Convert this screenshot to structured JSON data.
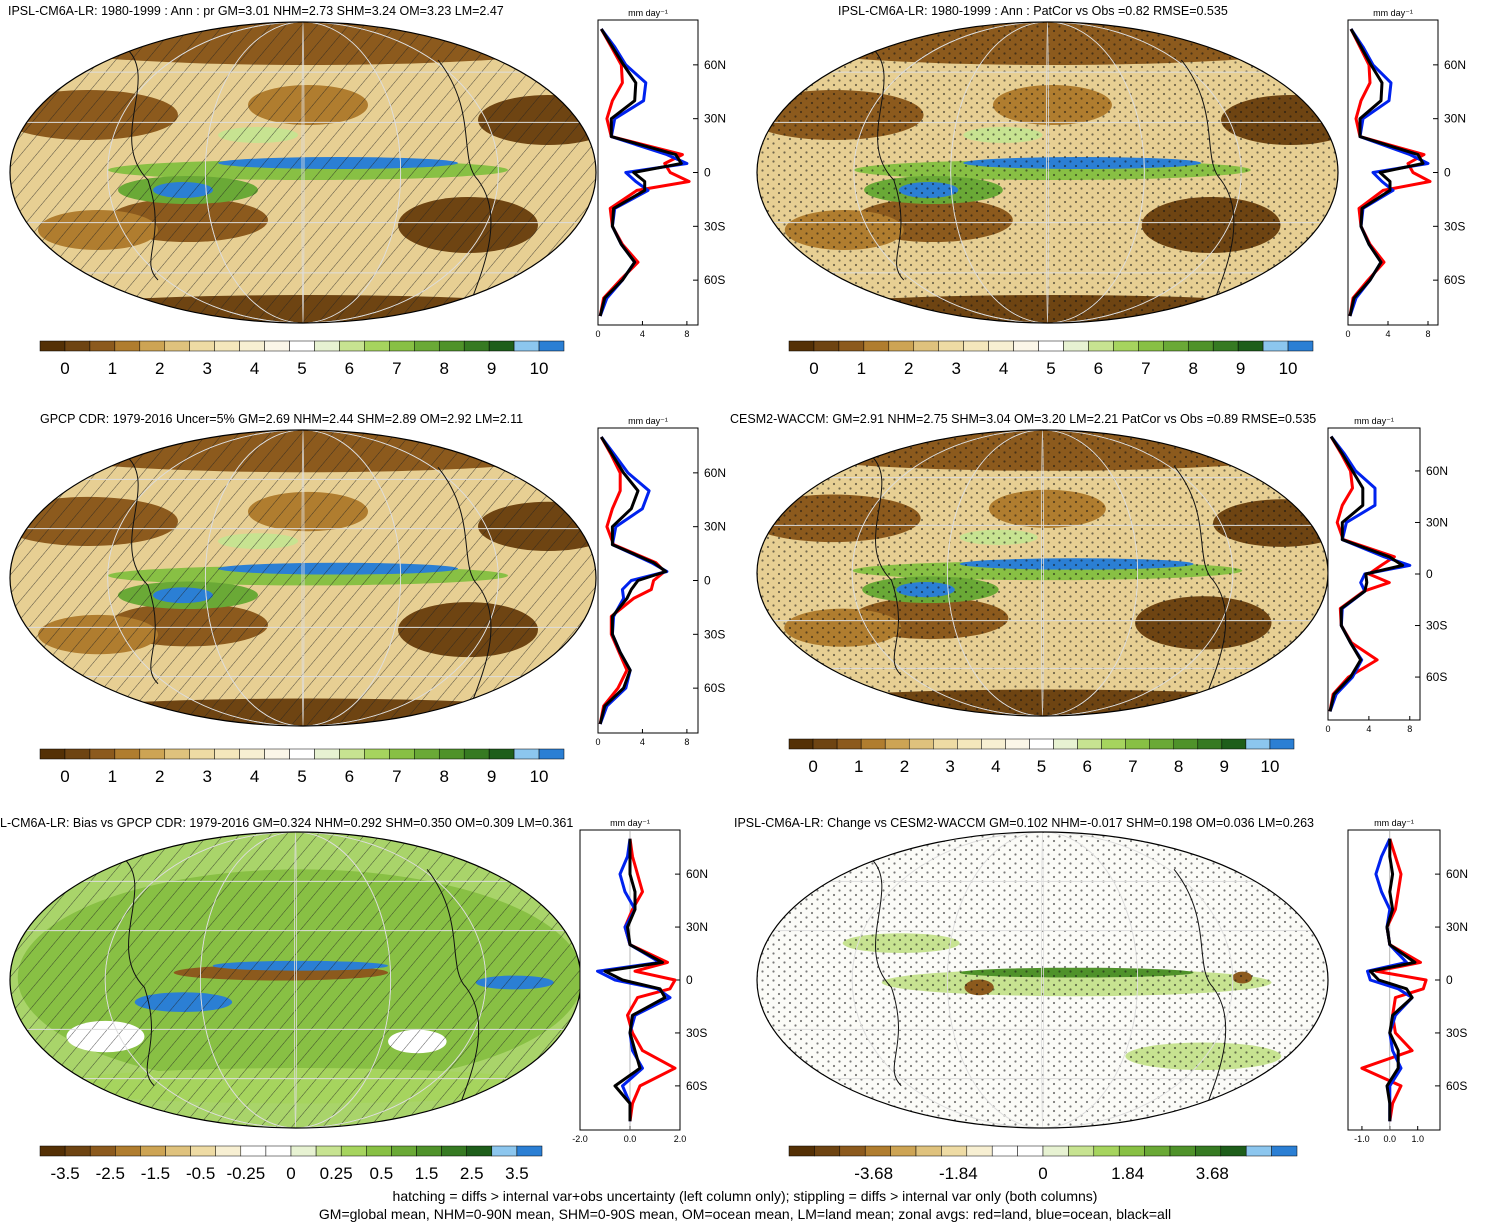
{
  "footer": {
    "line1": "hatching = diffs > internal var+obs uncertainty (left column only); stippling = diffs > internal var only (both columns)",
    "line2": "GM=global mean, NHM=0-90N mean, SHM=0-90S mean, OM=ocean mean, LM=land mean; zonal avgs: red=land, blue=ocean, black=all"
  },
  "colors": {
    "land": "#ff0000",
    "ocean": "#0022ee",
    "all": "#000000"
  },
  "zonal_unit": "mm day⁻¹",
  "chart_data": [
    {
      "type": "heatmap",
      "title": "IPSL-CM6A-LR: 1980-1999 : Ann : pr GM=3.01 NHM=2.73 SHM=3.24 OM=3.23 LM=2.47",
      "field": "precip",
      "overlay": "hatch",
      "colorbar": {
        "labels": [
          "0",
          "1",
          "2",
          "3",
          "4",
          "5",
          "6",
          "7",
          "8",
          "9",
          "10"
        ]
      },
      "zonal": {
        "unit": "mm day⁻¹",
        "xlim": [
          0,
          9
        ],
        "xticks": [
          0,
          4,
          8
        ],
        "ylim": [
          -85,
          85
        ],
        "yticks": [
          "60N",
          "30N",
          "0",
          "30S",
          "60S"
        ],
        "lat": [
          80,
          70,
          60,
          50,
          40,
          30,
          20,
          10,
          5,
          0,
          -5,
          -10,
          -20,
          -30,
          -40,
          -50,
          -60,
          -70,
          -80
        ],
        "series": [
          {
            "name": "land",
            "values": [
              0.3,
              1.2,
              2.1,
              2.2,
              1.3,
              0.8,
              1.2,
              7.6,
              6.0,
              6.5,
              8.2,
              3.5,
              1.1,
              1.3,
              2.2,
              3.6,
              2.0,
              0.5,
              0.2
            ]
          },
          {
            "name": "ocean",
            "values": [
              0.3,
              1.5,
              2.5,
              4.3,
              4.1,
              1.5,
              1.2,
              6.2,
              8.0,
              2.5,
              3.4,
              4.5,
              1.5,
              1.3,
              2.1,
              3.3,
              2.2,
              0.8,
              0.2
            ]
          },
          {
            "name": "all",
            "values": [
              0.3,
              1.3,
              2.3,
              3.4,
              3.3,
              1.2,
              1.2,
              7.0,
              7.5,
              3.2,
              4.2,
              4.2,
              1.4,
              1.3,
              2.1,
              3.3,
              2.2,
              0.6,
              0.2
            ]
          }
        ]
      }
    },
    {
      "type": "heatmap",
      "title": "IPSL-CM6A-LR: 1980-1999 : Ann : PatCor vs Obs =0.82 RMSE=0.535",
      "field": "precip",
      "overlay": "stipple",
      "colorbar": {
        "labels": [
          "0",
          "1",
          "2",
          "3",
          "4",
          "5",
          "6",
          "7",
          "8",
          "9",
          "10"
        ]
      },
      "zonal": {
        "unit": "mm day⁻¹",
        "xlim": [
          0,
          9
        ],
        "xticks": [
          0,
          4,
          8
        ],
        "ylim": [
          -85,
          85
        ],
        "yticks": [
          "60N",
          "30N",
          "0",
          "30S",
          "60S"
        ],
        "lat": [
          80,
          70,
          60,
          50,
          40,
          30,
          20,
          10,
          5,
          0,
          -5,
          -10,
          -20,
          -30,
          -40,
          -50,
          -60,
          -70,
          -80
        ],
        "series": [
          {
            "name": "land",
            "values": [
              0.3,
              1.2,
              2.1,
              2.2,
              1.3,
              0.8,
              1.2,
              7.6,
              6.0,
              6.5,
              8.2,
              3.5,
              1.1,
              1.3,
              2.2,
              3.6,
              2.0,
              0.5,
              0.2
            ]
          },
          {
            "name": "ocean",
            "values": [
              0.3,
              1.5,
              2.5,
              4.3,
              4.1,
              1.5,
              1.2,
              6.2,
              8.0,
              2.5,
              3.4,
              4.5,
              1.5,
              1.3,
              2.1,
              3.3,
              2.2,
              0.8,
              0.2
            ]
          },
          {
            "name": "all",
            "values": [
              0.3,
              1.3,
              2.3,
              3.4,
              3.3,
              1.2,
              1.2,
              7.0,
              7.5,
              3.2,
              4.2,
              4.2,
              1.4,
              1.3,
              2.1,
              3.3,
              2.2,
              0.6,
              0.2
            ]
          }
        ]
      }
    },
    {
      "type": "heatmap",
      "title": "GPCP CDR: 1979-2016 Uncer=5% GM=2.69 NHM=2.44 SHM=2.89 OM=2.92 LM=2.11",
      "field": "precip",
      "overlay": "hatch",
      "colorbar": {
        "labels": [
          "0",
          "1",
          "2",
          "3",
          "4",
          "5",
          "6",
          "7",
          "8",
          "9",
          "10"
        ]
      },
      "zonal": {
        "unit": "mm day⁻¹",
        "xlim": [
          0,
          9
        ],
        "xticks": [
          0,
          4,
          8
        ],
        "ylim": [
          -85,
          85
        ],
        "yticks": [
          "60N",
          "30N",
          "0",
          "30S",
          "60S"
        ],
        "lat": [
          80,
          70,
          60,
          50,
          40,
          30,
          20,
          10,
          5,
          0,
          -5,
          -10,
          -20,
          -30,
          -40,
          -50,
          -60,
          -70,
          -80
        ],
        "series": [
          {
            "name": "land",
            "values": [
              0.3,
              1.2,
              2.0,
              2.0,
              1.3,
              0.8,
              1.4,
              5.2,
              6.0,
              5.0,
              4.8,
              3.2,
              1.2,
              1.2,
              1.9,
              2.6,
              1.8,
              0.5,
              0.2
            ]
          },
          {
            "name": "ocean",
            "values": [
              0.3,
              1.5,
              2.7,
              4.6,
              4.0,
              1.6,
              1.3,
              4.8,
              6.2,
              3.0,
              2.2,
              2.3,
              1.4,
              1.3,
              2.0,
              2.9,
              2.5,
              0.8,
              0.2
            ]
          },
          {
            "name": "all",
            "values": [
              0.3,
              1.3,
              2.3,
              3.6,
              3.0,
              1.3,
              1.3,
              5.0,
              6.1,
              3.6,
              3.0,
              2.6,
              1.3,
              1.3,
              2.0,
              2.9,
              2.3,
              0.6,
              0.2
            ]
          }
        ]
      }
    },
    {
      "type": "heatmap",
      "title": "CESM2-WACCM: GM=2.91 NHM=2.75 SHM=3.04 OM=3.20 LM=2.21 PatCor vs Obs =0.89 RMSE=0.535",
      "field": "precip",
      "overlay": "stipple",
      "colorbar": {
        "labels": [
          "0",
          "1",
          "2",
          "3",
          "4",
          "5",
          "6",
          "7",
          "8",
          "9",
          "10"
        ]
      },
      "zonal": {
        "unit": "mm day⁻¹",
        "xlim": [
          0,
          9
        ],
        "xticks": [
          0,
          4,
          8
        ],
        "ylim": [
          -85,
          85
        ],
        "yticks": [
          "60N",
          "30N",
          "0",
          "30S",
          "60S"
        ],
        "lat": [
          80,
          70,
          60,
          50,
          40,
          30,
          20,
          10,
          5,
          0,
          -5,
          -10,
          -20,
          -30,
          -40,
          -50,
          -60,
          -70,
          -80
        ],
        "series": [
          {
            "name": "land",
            "values": [
              0.3,
              1.3,
              2.2,
              2.4,
              1.4,
              0.9,
              1.5,
              6.5,
              5.2,
              4.0,
              6.0,
              3.5,
              1.2,
              1.3,
              2.3,
              4.8,
              2.0,
              0.5,
              0.2
            ]
          },
          {
            "name": "ocean",
            "values": [
              0.3,
              1.6,
              2.7,
              4.6,
              4.6,
              1.8,
              1.4,
              5.5,
              8.0,
              3.6,
              3.2,
              3.6,
              1.4,
              1.3,
              2.2,
              3.3,
              2.4,
              0.8,
              0.2
            ]
          },
          {
            "name": "all",
            "values": [
              0.3,
              1.4,
              2.4,
              3.4,
              3.4,
              1.4,
              1.4,
              6.0,
              7.3,
              3.7,
              3.8,
              3.6,
              1.3,
              1.3,
              2.2,
              3.2,
              2.2,
              0.6,
              0.2
            ]
          }
        ]
      }
    },
    {
      "type": "heatmap",
      "title": "L-CM6A-LR: Bias vs GPCP CDR: 1979-2016 GM=0.324 NHM=0.292 SHM=0.350 OM=0.309 LM=0.361",
      "field": "bias",
      "overlay": "hatch",
      "colorbar": {
        "labels": [
          "-3.5",
          "-2.5",
          "-1.5",
          "-0.5",
          "-0.25",
          "0",
          "0.25",
          "0.5",
          "1.5",
          "2.5",
          "3.5"
        ]
      },
      "zonal": {
        "unit": "mm day⁻¹",
        "xlim": [
          -2.0,
          2.0
        ],
        "xticks": [
          -2.0,
          0.0,
          2.0
        ],
        "xticklabels": [
          "-2.0",
          "0.0",
          "2.0"
        ],
        "ylim": [
          -85,
          85
        ],
        "yticks": [
          "60N",
          "30N",
          "0",
          "30S",
          "60S"
        ],
        "lat": [
          80,
          70,
          60,
          50,
          40,
          30,
          20,
          10,
          5,
          0,
          -5,
          -10,
          -20,
          -30,
          -40,
          -50,
          -60,
          -70,
          -80
        ],
        "series": [
          {
            "name": "land",
            "values": [
              0.0,
              0.1,
              0.3,
              0.5,
              0.1,
              -0.2,
              0.0,
              1.5,
              0.2,
              1.8,
              1.6,
              0.3,
              -0.1,
              0.1,
              0.5,
              1.8,
              0.4,
              0.1,
              0.0
            ]
          },
          {
            "name": "ocean",
            "values": [
              0.0,
              -0.1,
              -0.4,
              -0.2,
              0.2,
              -0.2,
              0.0,
              1.2,
              -1.3,
              -0.6,
              1.1,
              1.6,
              0.2,
              0.0,
              0.1,
              0.5,
              -0.3,
              0.0,
              0.0
            ]
          },
          {
            "name": "all",
            "values": [
              0.0,
              0.0,
              0.0,
              0.2,
              0.2,
              -0.1,
              0.0,
              1.3,
              -1.0,
              -0.3,
              1.2,
              1.4,
              0.1,
              0.0,
              0.2,
              0.4,
              -0.6,
              0.0,
              0.0
            ]
          }
        ]
      }
    },
    {
      "type": "heatmap",
      "title": "IPSL-CM6A-LR: Change vs CESM2-WACCM GM=0.102 NHM=-0.017 SHM=0.198 OM=0.036 LM=0.263",
      "field": "diff",
      "overlay": "stipple",
      "colorbar": {
        "labels": [
          "-3.68",
          "-1.84",
          "0",
          "1.84",
          "3.68"
        ]
      },
      "zonal": {
        "unit": "mm day⁻¹",
        "xlim": [
          -1.5,
          1.8
        ],
        "xticks": [
          -1.0,
          0.0,
          1.0
        ],
        "xticklabels": [
          "-1.0",
          "0.0",
          "1.0"
        ],
        "ylim": [
          -85,
          85
        ],
        "yticks": [
          "60N",
          "30N",
          "0",
          "30S",
          "60S"
        ],
        "lat": [
          80,
          70,
          60,
          50,
          40,
          30,
          20,
          10,
          5,
          0,
          -5,
          -10,
          -20,
          -30,
          -40,
          -50,
          -60,
          -70,
          -80
        ],
        "series": [
          {
            "name": "land",
            "values": [
              0.0,
              0.2,
              0.4,
              0.3,
              0.2,
              -0.1,
              0.0,
              1.1,
              -0.5,
              1.3,
              1.2,
              0.2,
              0.1,
              0.2,
              0.8,
              -1.0,
              0.4,
              0.1,
              0.0
            ]
          },
          {
            "name": "ocean",
            "values": [
              0.0,
              -0.3,
              -0.5,
              -0.3,
              0.0,
              -0.1,
              0.0,
              0.6,
              -0.8,
              -0.7,
              0.3,
              0.8,
              0.2,
              0.0,
              0.1,
              0.4,
              0.0,
              0.0,
              0.0
            ]
          },
          {
            "name": "all",
            "values": [
              0.0,
              0.0,
              0.1,
              0.0,
              0.1,
              -0.1,
              0.0,
              0.9,
              -0.7,
              -0.4,
              0.6,
              0.8,
              0.1,
              0.0,
              0.3,
              0.3,
              -0.1,
              0.0,
              0.0
            ]
          }
        ]
      }
    }
  ]
}
